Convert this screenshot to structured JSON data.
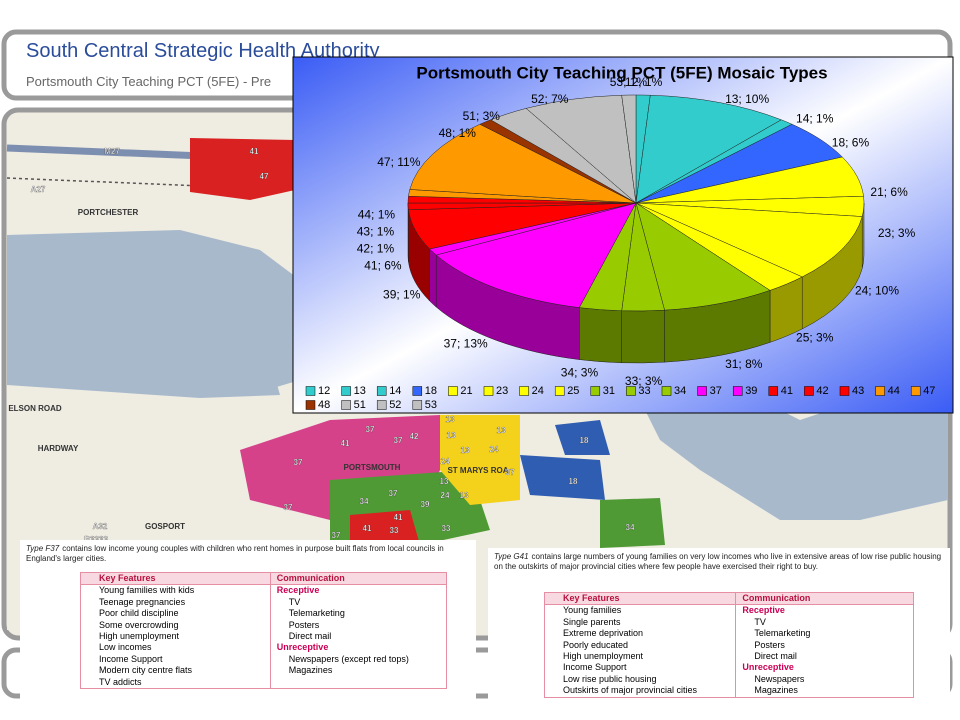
{
  "header": {
    "title": "South Central Strategic Health Authority",
    "subtitle": "Portsmouth City Teaching PCT (5FE) - Pre"
  },
  "map": {
    "labels": [
      "M27",
      "A27",
      "PORTCHESTER",
      "ELSON ROAD",
      "HARDWAY",
      "A32",
      "GOSPORT",
      "B3333",
      "PORTSMOUTH",
      "ST MARYS ROA",
      "41",
      "47",
      "37",
      "37",
      "41",
      "37",
      "42",
      "13",
      "13",
      "13",
      "24",
      "24",
      "13",
      "37",
      "18",
      "18",
      "34",
      "37",
      "39",
      "24",
      "13",
      "13",
      "41",
      "41",
      "33",
      "33",
      "34",
      "37",
      "37"
    ]
  },
  "chart_data": {
    "type": "pie",
    "title": "Portsmouth City Teaching PCT (5FE) Mosaic Types",
    "categories": [
      "12",
      "13",
      "14",
      "18",
      "21",
      "23",
      "24",
      "25",
      "31",
      "33",
      "34",
      "37",
      "39",
      "41",
      "42",
      "43",
      "44",
      "47",
      "48",
      "51",
      "52",
      "53"
    ],
    "values": [
      1,
      10,
      1,
      6,
      6,
      3,
      10,
      3,
      8,
      3,
      3,
      13,
      1,
      6,
      1,
      1,
      1,
      11,
      1,
      3,
      7,
      1
    ],
    "value_labels": [
      "12; 1%",
      "13; 10%",
      "14; 1%",
      "18; 6%",
      "21; 6%",
      "23; 3%",
      "24; 10%",
      "25; 3%",
      "31; 8%",
      "33; 3%",
      "34; 3%",
      "37; 13%",
      "39; 1%",
      "41; 6%",
      "42; 1%",
      "43; 1%",
      "44; 1%",
      "47; 11%",
      "48; 1%",
      "51; 3%",
      "52; 7%",
      "53; 1%"
    ],
    "colors": [
      "#33cccc",
      "#33cccc",
      "#33cccc",
      "#3366ff",
      "#ffff00",
      "#ffff00",
      "#ffff00",
      "#ffff00",
      "#99cc00",
      "#99cc00",
      "#99cc00",
      "#ff00ff",
      "#ff00ff",
      "#ff0000",
      "#ff0000",
      "#ff0000",
      "#ff9900",
      "#ff9900",
      "#993300",
      "#c0c0c0",
      "#c0c0c0",
      "#c0c0c0"
    ],
    "legend": "bottom",
    "three_d": true
  },
  "panels": [
    {
      "type": "Type F37",
      "intro": "contains low income young couples with children who rent homes in purpose built flats from local councils in England's larger cities.",
      "headers": [
        "Key Features",
        "Communication"
      ],
      "features": [
        "Young families with kids",
        "Teenage pregnancies",
        "Poor child discipline",
        "Some overcrowding",
        "High unemployment",
        "Low incomes",
        "Income Support",
        "Modern city centre flats",
        "TV addicts"
      ],
      "communication": [
        {
          "heading": "Receptive",
          "items": [
            "TV",
            "Telemarketing",
            "Posters",
            "Direct mail"
          ]
        },
        {
          "heading": "Unreceptive",
          "items": [
            "Newspapers (except red tops)",
            "Magazines"
          ]
        }
      ]
    },
    {
      "type": "Type G41",
      "intro": "contains large numbers of young families on very low incomes who live in extensive areas of low rise public housing on the outskirts of major provincial cities where few people have exercised their right to buy.",
      "headers": [
        "Key Features",
        "Communication"
      ],
      "features": [
        "Young families",
        "Single parents",
        "Extreme deprivation",
        "Poorly educated",
        "High unemployment",
        "Income Support",
        "Low rise public housing",
        "Outskirts of major provincial cities"
      ],
      "communication": [
        {
          "heading": "Receptive",
          "items": [
            "TV",
            "Telemarketing",
            "Posters",
            "Direct mail"
          ]
        },
        {
          "heading": "Unreceptive",
          "items": [
            "Newspapers",
            "Magazines"
          ]
        }
      ]
    }
  ]
}
